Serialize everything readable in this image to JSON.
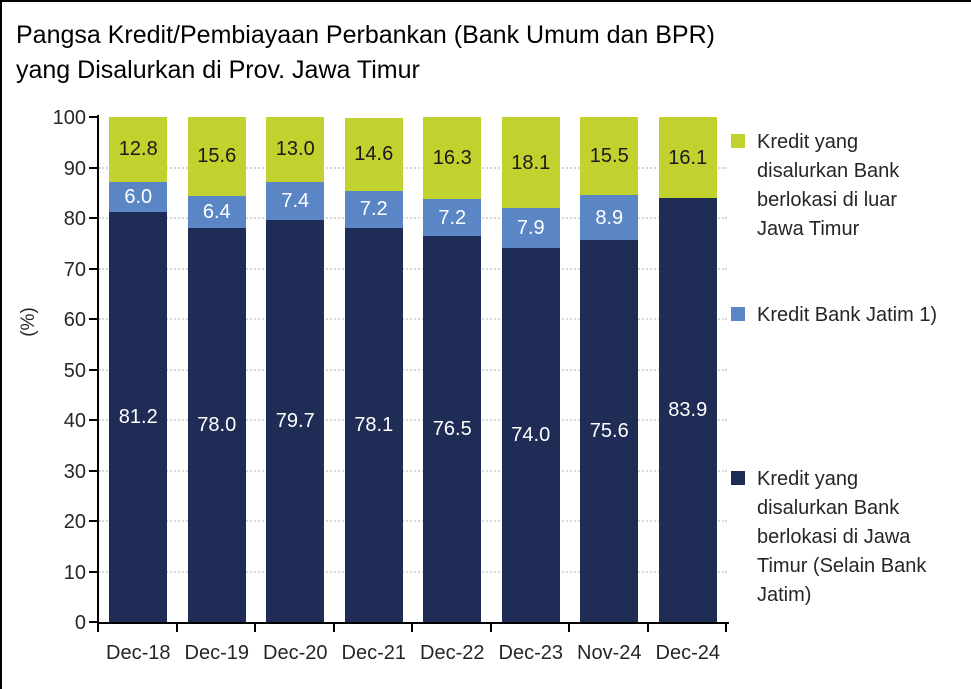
{
  "title": {
    "line1": "Pangsa Kredit/Pembiayaan Perbankan (Bank Umum dan BPR)",
    "line2": "yang Disalurkan di Prov. Jawa Timur"
  },
  "chart_data": {
    "type": "bar",
    "stacked": true,
    "title": "Pangsa Kredit/Pembiayaan Perbankan (Bank Umum dan BPR) yang Disalurkan di Prov. Jawa Timur",
    "categories": [
      "Dec-18",
      "Dec-19",
      "Dec-20",
      "Dec-21",
      "Dec-22",
      "Dec-23",
      "Nov-24",
      "Dec-24"
    ],
    "series": [
      {
        "name": "Kredit yang disalurkan Bank berlokasi di Jawa Timur (Selain Bank Jatim)",
        "color": "#1F2C55",
        "label_color": "#FFFFFF",
        "values": [
          81.2,
          78.0,
          79.7,
          78.1,
          76.5,
          74.0,
          75.6,
          83.9
        ]
      },
      {
        "name": "Kredit Bank Jatim 1)",
        "color": "#5B86C5",
        "label_color": "#FFFFFF",
        "values": [
          6.0,
          6.4,
          7.4,
          7.2,
          7.2,
          7.9,
          8.9,
          0
        ]
      },
      {
        "name": "Kredit yang disalurkan Bank berlokasi di luar Jawa Timur",
        "color": "#C1D22F",
        "label_color": "#1A1A1A",
        "values": [
          12.8,
          15.6,
          13.0,
          14.6,
          16.3,
          18.1,
          15.5,
          16.1
        ]
      }
    ],
    "xlabel": "",
    "ylabel": "(%)",
    "ylim": [
      0,
      100
    ],
    "yticks": [
      0,
      10,
      20,
      30,
      40,
      50,
      60,
      70,
      80,
      90,
      100
    ],
    "grid": true,
    "legend_position": "right",
    "legend_order": [
      2,
      1,
      0
    ]
  }
}
